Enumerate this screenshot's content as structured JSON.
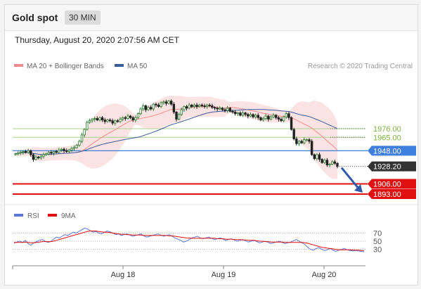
{
  "header": {
    "title": "Gold spot",
    "timeframe": "30 MIN",
    "datetime": "Thursday, August 20, 2020 2:07:56 AM CET"
  },
  "chart_data": [
    {
      "type": "candlestick",
      "legend": [
        {
          "label": "MA 20 + Bollinger Bands",
          "color": "#f08c8c"
        },
        {
          "label": "MA 50",
          "color": "#3a5d99"
        }
      ],
      "credit": "Research © 2020 Trading Central",
      "ylim": [
        1885,
        2050
      ],
      "x_ticks": [
        "Aug 18",
        "Aug 19",
        "Aug 20"
      ],
      "levels": [
        {
          "value": 1976.0,
          "label": "1976.00",
          "role": "resistance",
          "color": "#7cb342"
        },
        {
          "value": 1965.0,
          "label": "1965.00",
          "role": "resistance",
          "color": "#7cb342"
        },
        {
          "value": 1948.0,
          "label": "1948.00",
          "role": "pivot",
          "color": "#3f7fe0"
        },
        {
          "value": 1928.2,
          "label": "1928.20",
          "role": "last",
          "color": "#333333"
        },
        {
          "value": 1906.0,
          "label": "1906.00",
          "role": "support",
          "color": "#e01010"
        },
        {
          "value": 1893.0,
          "label": "1893.00",
          "role": "support",
          "color": "#e01010"
        }
      ],
      "colors": {
        "up": "#2e7d32",
        "down": "#222222",
        "bollinger": "#fbd9d9",
        "ma20": "#f08c8c",
        "ma50": "#3a5d99",
        "arrow": "#2f5aa8"
      },
      "close": [
        1944,
        1945,
        1946,
        1947,
        1946,
        1948,
        1943,
        1937,
        1940,
        1939,
        1941,
        1943,
        1944,
        1946,
        1945,
        1947,
        1946,
        1949,
        1950,
        1948,
        1947,
        1949,
        1951,
        1952,
        1955,
        1960,
        1968,
        1975,
        1984,
        1986,
        1988,
        1989,
        1987,
        1990,
        1987,
        1985,
        1987,
        1986,
        1983,
        1986,
        1985,
        1988,
        1990,
        1989,
        1992,
        1990,
        1987,
        1990,
        1995,
        2001,
        2005,
        2000,
        2003,
        2001,
        2007,
        2006,
        2004,
        2009,
        2010,
        2008,
        2011,
        2007,
        1997,
        1988,
        1994,
        2000,
        2004,
        2002,
        2006,
        2004,
        2006,
        2004,
        2006,
        2005,
        2004,
        2006,
        2005,
        2003,
        2002,
        2001,
        2002,
        2000,
        1999,
        2002,
        1998,
        1997,
        1995,
        1996,
        1993,
        1996,
        1994,
        1992,
        1994,
        1991,
        1993,
        1990,
        1987,
        1989,
        1992,
        1988,
        1991,
        1993,
        1990,
        1988,
        1986,
        1991,
        1995,
        1990,
        1975,
        1963,
        1957,
        1960,
        1958,
        1962,
        1962,
        1960,
        1943,
        1938,
        1943,
        1937,
        1933,
        1936,
        1930,
        1931,
        1934,
        1932,
        1928.2
      ]
    },
    {
      "type": "line",
      "series": [
        {
          "name": "RSI",
          "color": "#5b78d6",
          "values": [
            45,
            48,
            50,
            47,
            52,
            44,
            40,
            46,
            49,
            52,
            54,
            50,
            47,
            49,
            55,
            60,
            58,
            62,
            66,
            64,
            68,
            72,
            70,
            74,
            78,
            82,
            80,
            76,
            72,
            74,
            70,
            68,
            72,
            75,
            73,
            70,
            66,
            68,
            64,
            66,
            68,
            65,
            62,
            64,
            66,
            68,
            63,
            60,
            62,
            64,
            66,
            68,
            65,
            62,
            64,
            66,
            62,
            58,
            55,
            52,
            48,
            50,
            54,
            58,
            60,
            62,
            58,
            56,
            58,
            60,
            57,
            54,
            56,
            58,
            55,
            52,
            54,
            56,
            53,
            50,
            52,
            54,
            51,
            48,
            50,
            52,
            49,
            46,
            48,
            50,
            47,
            44,
            46,
            48,
            50,
            47,
            44,
            46,
            48,
            51,
            54,
            50,
            46,
            42,
            35,
            30,
            28,
            32,
            34,
            30,
            27,
            29,
            32,
            28,
            25,
            28,
            30,
            32,
            29,
            27,
            26,
            27,
            26,
            25,
            24
          ]
        },
        {
          "name": "9MA",
          "color": "#e01010",
          "values": [
            47,
            47,
            47,
            47,
            48,
            47,
            46,
            46,
            47,
            48,
            49,
            49,
            49,
            49,
            50,
            52,
            54,
            56,
            58,
            60,
            62,
            64,
            66,
            68,
            70,
            72,
            74,
            75,
            75,
            75,
            74,
            73,
            72,
            72,
            71,
            70,
            69,
            68,
            67,
            67,
            66,
            66,
            65,
            65,
            65,
            65,
            64,
            64,
            64,
            64,
            64,
            64,
            64,
            64,
            64,
            63,
            63,
            62,
            61,
            60,
            59,
            58,
            58,
            57,
            57,
            57,
            57,
            57,
            57,
            57,
            57,
            57,
            56,
            56,
            56,
            55,
            55,
            55,
            54,
            54,
            54,
            53,
            53,
            52,
            52,
            52,
            51,
            50,
            50,
            49,
            49,
            48,
            48,
            48,
            48,
            48,
            47,
            47,
            47,
            47,
            47,
            47,
            47,
            46,
            45,
            43,
            41,
            39,
            37,
            35,
            34,
            33,
            32,
            31,
            30,
            29,
            29,
            29,
            29,
            29,
            28,
            28,
            28,
            27,
            27
          ]
        }
      ],
      "legend": [
        "RSI",
        "9MA"
      ],
      "ylim": [
        0,
        100
      ],
      "y_ticks": [
        70,
        50,
        30
      ]
    }
  ]
}
